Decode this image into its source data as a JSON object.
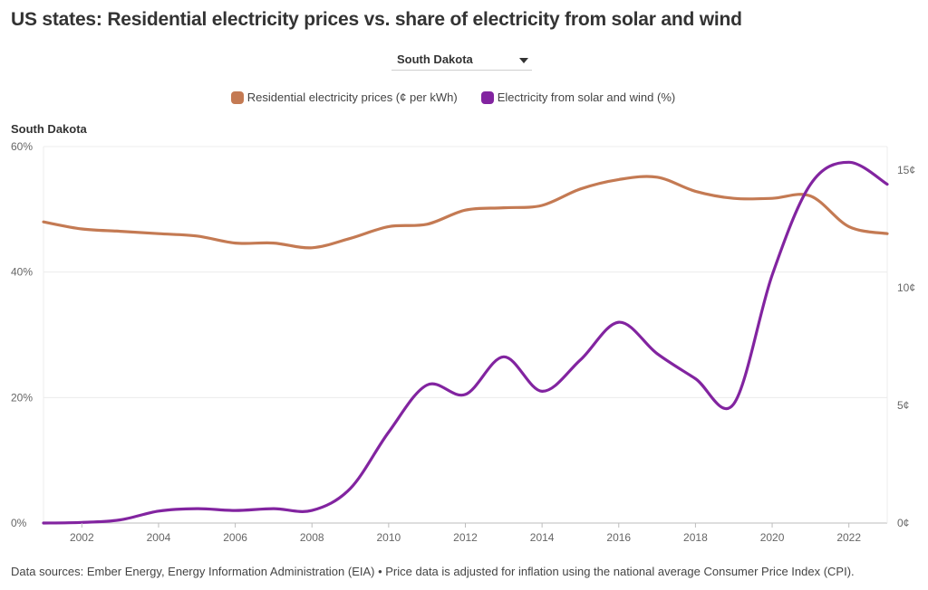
{
  "header": {
    "title": "US states: Residential electricity prices vs. share of electricity from solar and wind"
  },
  "selector": {
    "selected": "South Dakota"
  },
  "panel": {
    "label": "South Dakota"
  },
  "footer": {
    "text": "Data sources: Ember Energy, Energy Information Administration (EIA) • Price data is adjusted for inflation using the national average Consumer Price Index (CPI)."
  },
  "chart_data": {
    "type": "line",
    "x": [
      2001,
      2002,
      2003,
      2004,
      2005,
      2006,
      2007,
      2008,
      2009,
      2010,
      2011,
      2012,
      2013,
      2014,
      2015,
      2016,
      2017,
      2018,
      2019,
      2020,
      2021,
      2022,
      2023
    ],
    "x_ticks": [
      "2002",
      "2004",
      "2006",
      "2008",
      "2010",
      "2012",
      "2014",
      "2016",
      "2018",
      "2020",
      "2022"
    ],
    "xlim": [
      2001,
      2023
    ],
    "series": [
      {
        "name": "Residential electricity prices (¢ per kWh)",
        "axis": "right",
        "color": "#c47a53",
        "values": [
          12.8,
          12.5,
          12.4,
          12.3,
          12.2,
          11.9,
          11.9,
          11.7,
          12.1,
          12.6,
          12.7,
          13.3,
          13.4,
          13.5,
          14.2,
          14.6,
          14.7,
          14.1,
          13.8,
          13.8,
          13.9,
          12.6,
          12.3
        ]
      },
      {
        "name": "Electricity from solar and wind (%)",
        "axis": "left",
        "color": "#8224a0",
        "values": [
          0.0,
          0.1,
          0.5,
          1.9,
          2.3,
          2.0,
          2.3,
          2.0,
          5.5,
          14.5,
          22.0,
          20.5,
          26.5,
          21.0,
          26.0,
          32.0,
          27.0,
          23.0,
          19.0,
          39.5,
          54.0,
          57.5,
          54.0
        ]
      }
    ],
    "left_axis": {
      "ticks": [
        "0%",
        "20%",
        "40%",
        "60%"
      ],
      "ylim": [
        0,
        60
      ]
    },
    "right_axis": {
      "ticks": [
        "0¢",
        "5¢",
        "10¢",
        "15¢"
      ],
      "ylim": [
        0,
        16
      ]
    },
    "grid": true,
    "legend": "top-center"
  }
}
